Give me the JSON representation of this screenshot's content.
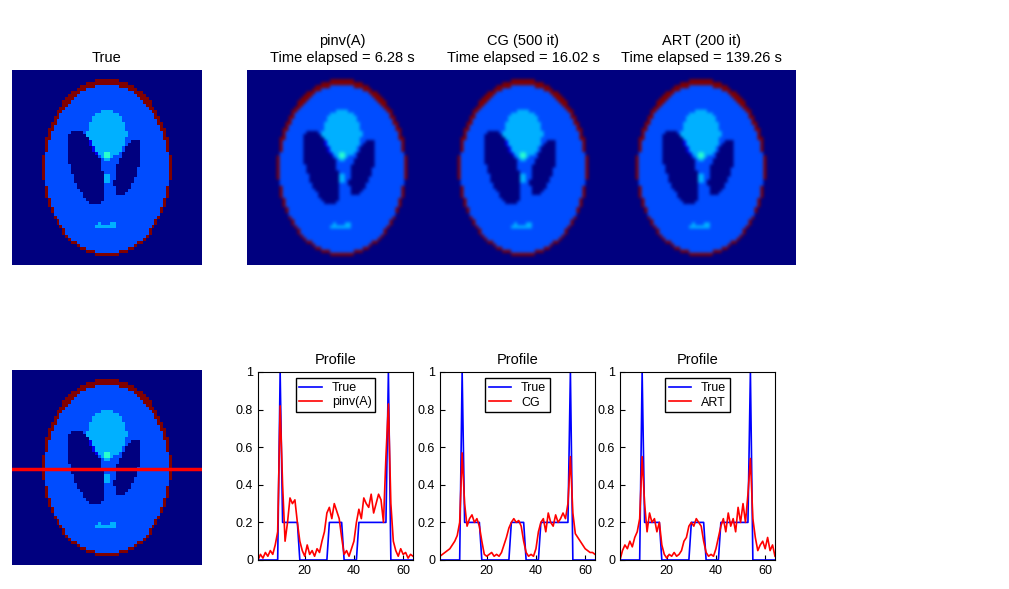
{
  "images": [
    {
      "title": "True",
      "kind": "true"
    },
    {
      "title": "pinv(A)\nTime elapsed = 6.28 s",
      "kind": "reconstruction"
    },
    {
      "title": "CG (500 it)\nTime elapsed = 16.02 s",
      "kind": "reconstruction"
    },
    {
      "title": "ART (200 it)\nTime elapsed = 139.26 s",
      "kind": "reconstruction"
    }
  ],
  "profile_image": {
    "kind": "true",
    "profile_row": 32,
    "line_color": "#ff0000"
  },
  "phantom": {
    "size": 64,
    "value_range": [
      0,
      1
    ],
    "ellipses": [
      {
        "value": 1.0,
        "a": 0.69,
        "b": 0.92,
        "x0": 0.0,
        "y0": 0.0,
        "angle": 0
      },
      {
        "value": -0.8,
        "a": 0.6624,
        "b": 0.874,
        "x0": 0.0,
        "y0": -0.0184,
        "angle": 0
      },
      {
        "value": -0.2,
        "a": 0.11,
        "b": 0.31,
        "x0": 0.22,
        "y0": 0.0,
        "angle": -18
      },
      {
        "value": -0.2,
        "a": 0.16,
        "b": 0.41,
        "x0": -0.22,
        "y0": 0.0,
        "angle": 18
      },
      {
        "value": 0.1,
        "a": 0.21,
        "b": 0.25,
        "x0": 0.0,
        "y0": 0.35,
        "angle": 0
      },
      {
        "value": 0.1,
        "a": 0.046,
        "b": 0.046,
        "x0": 0.0,
        "y0": 0.1,
        "angle": 0
      },
      {
        "value": 0.1,
        "a": 0.046,
        "b": 0.046,
        "x0": 0.0,
        "y0": -0.1,
        "angle": 0
      },
      {
        "value": 0.1,
        "a": 0.046,
        "b": 0.023,
        "x0": -0.08,
        "y0": -0.605,
        "angle": 0
      },
      {
        "value": 0.1,
        "a": 0.023,
        "b": 0.023,
        "x0": 0.0,
        "y0": -0.606,
        "angle": 0
      },
      {
        "value": 0.1,
        "a": 0.023,
        "b": 0.046,
        "x0": 0.06,
        "y0": -0.605,
        "angle": 0
      }
    ]
  },
  "chart_data": [
    {
      "type": "line",
      "title": "Profile",
      "x": [
        1,
        2,
        3,
        4,
        5,
        6,
        7,
        8,
        9,
        10,
        11,
        12,
        13,
        14,
        15,
        16,
        17,
        18,
        19,
        20,
        21,
        22,
        23,
        24,
        25,
        26,
        27,
        28,
        29,
        30,
        31,
        32,
        33,
        34,
        35,
        36,
        37,
        38,
        39,
        40,
        41,
        42,
        43,
        44,
        45,
        46,
        47,
        48,
        49,
        50,
        51,
        52,
        53,
        54,
        55,
        56,
        57,
        58,
        59,
        60,
        61,
        62,
        63,
        64
      ],
      "xlim": [
        1,
        64
      ],
      "xticks": [
        20,
        40,
        60
      ],
      "ylim": [
        0,
        1
      ],
      "yticks": [
        0,
        0.2,
        0.4,
        0.6,
        0.8,
        1
      ],
      "legend": "upper center",
      "series": [
        {
          "name": "True",
          "color": "#0000ff",
          "values": [
            0,
            0,
            0,
            0,
            0,
            0,
            0,
            0,
            0,
            1,
            0.2,
            0.2,
            0.2,
            0.2,
            0.2,
            0.2,
            0.2,
            0,
            0,
            0,
            0,
            0,
            0,
            0,
            0,
            0,
            0,
            0,
            0,
            0.2,
            0.2,
            0.2,
            0.2,
            0.2,
            0.2,
            0,
            0,
            0,
            0,
            0,
            0,
            0.2,
            0.2,
            0.2,
            0.2,
            0.2,
            0.2,
            0.2,
            0.2,
            0.2,
            0.2,
            0.2,
            0.2,
            1,
            0,
            0,
            0,
            0,
            0,
            0,
            0,
            0,
            0,
            0
          ]
        },
        {
          "name": "pinv(A)",
          "color": "#ff0000",
          "values": [
            0.0,
            0.03,
            0.01,
            0.04,
            0.02,
            0.05,
            0.03,
            0.08,
            0.15,
            0.82,
            0.4,
            0.1,
            0.2,
            0.33,
            0.3,
            0.32,
            0.2,
            0.1,
            0.05,
            0.02,
            0.08,
            0.03,
            0.05,
            0.02,
            0.06,
            0.04,
            0.1,
            0.15,
            0.25,
            0.28,
            0.22,
            0.3,
            0.26,
            0.22,
            0.12,
            0.03,
            0.05,
            0.02,
            0.06,
            0.1,
            0.2,
            0.27,
            0.22,
            0.33,
            0.3,
            0.28,
            0.35,
            0.25,
            0.3,
            0.35,
            0.32,
            0.2,
            0.55,
            0.83,
            0.3,
            0.1,
            0.05,
            0.02,
            0.06,
            0.03,
            0.04,
            0.01,
            0.03,
            0.02
          ]
        }
      ]
    },
    {
      "type": "line",
      "title": "Profile",
      "x": [
        1,
        2,
        3,
        4,
        5,
        6,
        7,
        8,
        9,
        10,
        11,
        12,
        13,
        14,
        15,
        16,
        17,
        18,
        19,
        20,
        21,
        22,
        23,
        24,
        25,
        26,
        27,
        28,
        29,
        30,
        31,
        32,
        33,
        34,
        35,
        36,
        37,
        38,
        39,
        40,
        41,
        42,
        43,
        44,
        45,
        46,
        47,
        48,
        49,
        50,
        51,
        52,
        53,
        54,
        55,
        56,
        57,
        58,
        59,
        60,
        61,
        62,
        63,
        64
      ],
      "xlim": [
        1,
        64
      ],
      "xticks": [
        20,
        40,
        60
      ],
      "ylim": [
        0,
        1
      ],
      "yticks": [
        0,
        0.2,
        0.4,
        0.6,
        0.8,
        1
      ],
      "legend": "upper center",
      "series": [
        {
          "name": "True",
          "color": "#0000ff",
          "values": [
            0,
            0,
            0,
            0,
            0,
            0,
            0,
            0,
            0,
            1,
            0.2,
            0.2,
            0.2,
            0.2,
            0.2,
            0.2,
            0.2,
            0,
            0,
            0,
            0,
            0,
            0,
            0,
            0,
            0,
            0,
            0,
            0,
            0.2,
            0.2,
            0.2,
            0.2,
            0.2,
            0.2,
            0,
            0,
            0,
            0,
            0,
            0,
            0.2,
            0.2,
            0.2,
            0.2,
            0.2,
            0.2,
            0.2,
            0.2,
            0.2,
            0.2,
            0.2,
            0.2,
            1,
            0,
            0,
            0,
            0,
            0,
            0,
            0,
            0,
            0,
            0
          ]
        },
        {
          "name": "CG",
          "color": "#ff0000",
          "values": [
            0.02,
            0.03,
            0.04,
            0.05,
            0.06,
            0.08,
            0.1,
            0.13,
            0.2,
            0.57,
            0.3,
            0.18,
            0.22,
            0.24,
            0.2,
            0.22,
            0.18,
            0.1,
            0.03,
            0.02,
            0.03,
            0.04,
            0.02,
            0.03,
            0.02,
            0.04,
            0.08,
            0.12,
            0.17,
            0.2,
            0.22,
            0.2,
            0.21,
            0.18,
            0.1,
            0.04,
            0.02,
            0.03,
            0.02,
            0.06,
            0.15,
            0.2,
            0.22,
            0.15,
            0.25,
            0.2,
            0.18,
            0.24,
            0.2,
            0.22,
            0.25,
            0.22,
            0.3,
            0.55,
            0.25,
            0.14,
            0.12,
            0.1,
            0.08,
            0.06,
            0.05,
            0.04,
            0.04,
            0.03
          ]
        }
      ]
    },
    {
      "type": "line",
      "title": "Profile",
      "x": [
        1,
        2,
        3,
        4,
        5,
        6,
        7,
        8,
        9,
        10,
        11,
        12,
        13,
        14,
        15,
        16,
        17,
        18,
        19,
        20,
        21,
        22,
        23,
        24,
        25,
        26,
        27,
        28,
        29,
        30,
        31,
        32,
        33,
        34,
        35,
        36,
        37,
        38,
        39,
        40,
        41,
        42,
        43,
        44,
        45,
        46,
        47,
        48,
        49,
        50,
        51,
        52,
        53,
        54,
        55,
        56,
        57,
        58,
        59,
        60,
        61,
        62,
        63,
        64
      ],
      "xlim": [
        1,
        64
      ],
      "xticks": [
        20,
        40,
        60
      ],
      "ylim": [
        0,
        1
      ],
      "yticks": [
        0,
        0.2,
        0.4,
        0.6,
        0.8,
        1
      ],
      "legend": "upper center",
      "series": [
        {
          "name": "True",
          "color": "#0000ff",
          "values": [
            0,
            0,
            0,
            0,
            0,
            0,
            0,
            0,
            0,
            1,
            0.2,
            0.2,
            0.2,
            0.2,
            0.2,
            0.2,
            0.2,
            0,
            0,
            0,
            0,
            0,
            0,
            0,
            0,
            0,
            0,
            0,
            0,
            0.2,
            0.2,
            0.2,
            0.2,
            0.2,
            0.2,
            0,
            0,
            0,
            0,
            0,
            0,
            0.2,
            0.2,
            0.2,
            0.2,
            0.2,
            0.2,
            0.2,
            0.2,
            0.2,
            0.2,
            0.2,
            0.2,
            1,
            0,
            0,
            0,
            0,
            0,
            0,
            0,
            0,
            0,
            0
          ]
        },
        {
          "name": "ART",
          "color": "#ff0000",
          "values": [
            0.0,
            0.05,
            0.08,
            0.06,
            0.1,
            0.07,
            0.12,
            0.15,
            0.22,
            0.55,
            0.3,
            0.15,
            0.25,
            0.2,
            0.22,
            0.15,
            0.2,
            0.08,
            0.03,
            0.01,
            0.03,
            0.02,
            0.04,
            0.02,
            0.03,
            0.05,
            0.1,
            0.12,
            0.18,
            0.2,
            0.18,
            0.22,
            0.2,
            0.18,
            0.1,
            0.04,
            0.02,
            0.03,
            0.02,
            0.06,
            0.12,
            0.18,
            0.22,
            0.15,
            0.25,
            0.18,
            0.22,
            0.15,
            0.28,
            0.2,
            0.3,
            0.2,
            0.35,
            0.54,
            0.22,
            0.12,
            0.05,
            0.08,
            0.1,
            0.06,
            0.12,
            0.05,
            0.08,
            0.02
          ]
        }
      ]
    }
  ]
}
